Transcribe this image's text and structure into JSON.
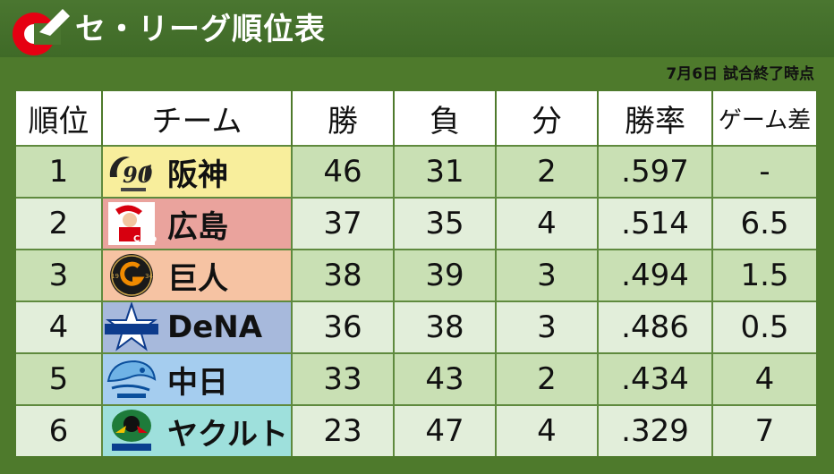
{
  "header": {
    "title": "セ・リーグ順位表"
  },
  "date_note": "7月6日 試合終了時点",
  "columns": [
    "順位",
    "チーム",
    "勝",
    "負",
    "分",
    "勝率",
    "ゲーム差"
  ],
  "rows": [
    {
      "rank": "1",
      "team": "阪神",
      "wins": "46",
      "losses": "31",
      "draws": "2",
      "pct": ".597",
      "gb": "-",
      "color": "#f8ee9c",
      "logo": "tigers-logo"
    },
    {
      "rank": "2",
      "team": "広島",
      "wins": "37",
      "losses": "35",
      "draws": "4",
      "pct": ".514",
      "gb": "6.5",
      "color": "#eaa39d",
      "logo": "carp-logo"
    },
    {
      "rank": "3",
      "team": "巨人",
      "wins": "38",
      "losses": "39",
      "draws": "3",
      "pct": ".494",
      "gb": "1.5",
      "color": "#f6c3a3",
      "logo": "giants-logo"
    },
    {
      "rank": "4",
      "team": "DeNA",
      "wins": "36",
      "losses": "38",
      "draws": "3",
      "pct": ".486",
      "gb": "0.5",
      "color": "#a7b9dc",
      "logo": "baystars-logo"
    },
    {
      "rank": "5",
      "team": "中日",
      "wins": "33",
      "losses": "43",
      "draws": "2",
      "pct": ".434",
      "gb": "4",
      "color": "#a5cdef",
      "logo": "dragons-logo"
    },
    {
      "rank": "6",
      "team": "ヤクルト",
      "wins": "23",
      "losses": "47",
      "draws": "4",
      "pct": ".329",
      "gb": "7",
      "color": "#9ee0dc",
      "logo": "swallows-logo"
    }
  ]
}
